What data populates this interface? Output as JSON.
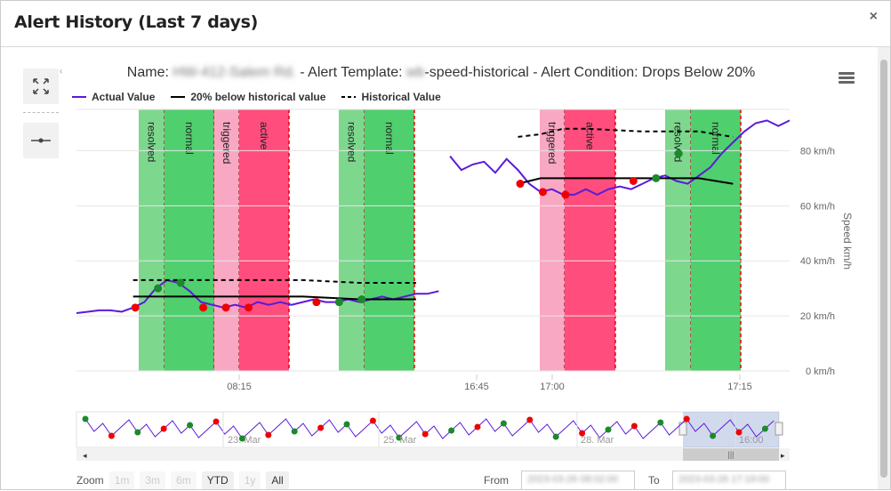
{
  "modal": {
    "title": "Alert History (Last 7 days)",
    "close_label": "×"
  },
  "chart": {
    "title_name_prefix": "Name:",
    "title_name_redacted": "HW-412-Salem Rd.",
    "title_template_prefix": "- Alert Template:",
    "title_template_redacted": "wb",
    "title_template_suffix": "-speed-historical - Alert Condition: Drops Below 20%",
    "legend": [
      {
        "label": "Actual Value",
        "color": "#5a1adb",
        "style": "solid"
      },
      {
        "label": "20% below historical value",
        "color": "#000000",
        "style": "solid"
      },
      {
        "label": "Historical Value",
        "color": "#000000",
        "style": "dashed"
      }
    ],
    "y_axis_title": "Speed km/h"
  },
  "chart_data": {
    "type": "line",
    "ylabel": "Speed km/h",
    "ylim": [
      0,
      95
    ],
    "y_ticks": [
      "0 km/h",
      "20 km/h",
      "40 km/h",
      "60 km/h",
      "80 km/h"
    ],
    "y_tick_values": [
      0,
      20,
      40,
      60,
      80
    ],
    "x_ticks": [
      "08:15",
      "16:45",
      "17:00",
      "17:15"
    ],
    "bands": [
      {
        "label": "resolved",
        "state": "resolved",
        "color": "#7dd88e"
      },
      {
        "label": "normal",
        "state": "normal",
        "color": "#4fcf6e"
      },
      {
        "label": "triggered",
        "state": "triggered",
        "color": "#f9a8c4"
      },
      {
        "label": "active",
        "state": "active",
        "color": "#ff4d7e"
      },
      {
        "label": "resolved",
        "state": "resolved",
        "color": "#7dd88e"
      },
      {
        "label": "normal",
        "state": "normal",
        "color": "#4fcf6e"
      },
      {
        "label": "triggered",
        "state": "triggered",
        "color": "#f9a8c4"
      },
      {
        "label": "active",
        "state": "active",
        "color": "#ff4d7e"
      },
      {
        "label": "resolved",
        "state": "resolved",
        "color": "#7dd88e"
      },
      {
        "label": "normal",
        "state": "normal",
        "color": "#4fcf6e"
      }
    ],
    "series": [
      {
        "name": "Actual Value",
        "color": "#5a1adb",
        "segments": [
          [
            [
              0,
              21
            ],
            [
              1,
              21.5
            ],
            [
              2,
              22
            ],
            [
              3,
              22
            ],
            [
              4,
              21.5
            ],
            [
              5,
              23
            ],
            [
              6,
              25
            ],
            [
              7,
              30
            ],
            [
              8,
              33
            ],
            [
              9,
              32
            ],
            [
              10,
              29
            ],
            [
              11,
              25
            ],
            [
              12,
              24
            ],
            [
              13,
              23
            ],
            [
              14,
              24
            ],
            [
              15,
              23
            ],
            [
              16,
              25
            ],
            [
              17,
              24
            ],
            [
              18,
              25
            ],
            [
              19,
              24
            ],
            [
              20,
              25
            ],
            [
              21,
              26
            ],
            [
              22,
              25
            ],
            [
              23,
              25
            ],
            [
              24,
              26
            ],
            [
              25,
              25
            ],
            [
              26,
              26
            ],
            [
              27,
              27
            ],
            [
              28,
              26
            ],
            [
              29,
              27
            ],
            [
              30,
              28
            ],
            [
              31,
              28
            ],
            [
              32,
              29
            ]
          ],
          [
            [
              33,
              78
            ],
            [
              34,
              73
            ],
            [
              35,
              75
            ],
            [
              36,
              76
            ],
            [
              37,
              72
            ],
            [
              38,
              77
            ],
            [
              39,
              73
            ],
            [
              40,
              68
            ],
            [
              41,
              65
            ],
            [
              42,
              66
            ],
            [
              43,
              64
            ],
            [
              44,
              64
            ],
            [
              45,
              66
            ],
            [
              46,
              64
            ],
            [
              47,
              66
            ],
            [
              48,
              67
            ],
            [
              49,
              66
            ],
            [
              50,
              68
            ],
            [
              51,
              70
            ],
            [
              52,
              71
            ],
            [
              53,
              69
            ],
            [
              54,
              68
            ],
            [
              55,
              71
            ],
            [
              56,
              74
            ],
            [
              57,
              79
            ],
            [
              58,
              83
            ],
            [
              59,
              87
            ],
            [
              60,
              90
            ],
            [
              61,
              91
            ],
            [
              62,
              89
            ],
            [
              63,
              91
            ]
          ]
        ]
      },
      {
        "name": "20% below historical value",
        "color": "#000000",
        "segments": [
          [
            [
              5,
              27
            ],
            [
              10,
              27
            ],
            [
              15,
              27
            ],
            [
              20,
              27
            ],
            [
              25,
              26
            ],
            [
              30,
              26
            ]
          ],
          [
            [
              39,
              68
            ],
            [
              41,
              70
            ],
            [
              45,
              70
            ],
            [
              50,
              70
            ],
            [
              55,
              70
            ],
            [
              58,
              68
            ]
          ]
        ]
      },
      {
        "name": "Historical Value",
        "color": "#000000",
        "segments": [
          [
            [
              5,
              33
            ],
            [
              10,
              33
            ],
            [
              15,
              33
            ],
            [
              20,
              33
            ],
            [
              25,
              32
            ],
            [
              30,
              32
            ]
          ],
          [
            [
              39,
              85
            ],
            [
              41,
              86
            ],
            [
              43,
              88
            ],
            [
              45,
              88
            ],
            [
              50,
              87
            ],
            [
              53,
              87
            ],
            [
              55,
              87
            ],
            [
              58,
              85
            ]
          ]
        ]
      }
    ],
    "markers": [
      {
        "x": 5.2,
        "y": 23,
        "color": "red"
      },
      {
        "x": 7.2,
        "y": 30,
        "color": "green"
      },
      {
        "x": 9.2,
        "y": 32,
        "color": "green"
      },
      {
        "x": 11.2,
        "y": 23,
        "color": "red"
      },
      {
        "x": 13.2,
        "y": 23,
        "color": "red"
      },
      {
        "x": 15.2,
        "y": 23,
        "color": "red"
      },
      {
        "x": 21.2,
        "y": 25,
        "color": "red"
      },
      {
        "x": 23.2,
        "y": 25,
        "color": "green"
      },
      {
        "x": 25.2,
        "y": 26,
        "color": "green"
      },
      {
        "x": 39.2,
        "y": 68,
        "color": "red"
      },
      {
        "x": 41.2,
        "y": 65,
        "color": "red"
      },
      {
        "x": 43.2,
        "y": 64,
        "color": "red"
      },
      {
        "x": 49.2,
        "y": 69,
        "color": "red"
      },
      {
        "x": 51.2,
        "y": 70,
        "color": "green"
      },
      {
        "x": 53.2,
        "y": 79,
        "color": "green"
      }
    ]
  },
  "navigator": {
    "labels": [
      "23. Mar",
      "25. Mar",
      "28. Mar",
      "16:00"
    ],
    "scroll_grip": "|||"
  },
  "toolbar": {
    "expand_icon": "expand-icon",
    "pan_icon": "pan-icon",
    "menu_icon": "hamburger-icon"
  },
  "range_selector": {
    "zoom_label": "Zoom",
    "buttons": [
      {
        "label": "1m",
        "enabled": false
      },
      {
        "label": "3m",
        "enabled": false
      },
      {
        "label": "6m",
        "enabled": false
      },
      {
        "label": "YTD",
        "enabled": true
      },
      {
        "label": "1y",
        "enabled": false
      },
      {
        "label": "All",
        "enabled": true
      }
    ],
    "from_label": "From",
    "from_value": "2023-03-26 08:02:00",
    "to_label": "To",
    "to_value": "2023-03-26 17:19:00"
  }
}
